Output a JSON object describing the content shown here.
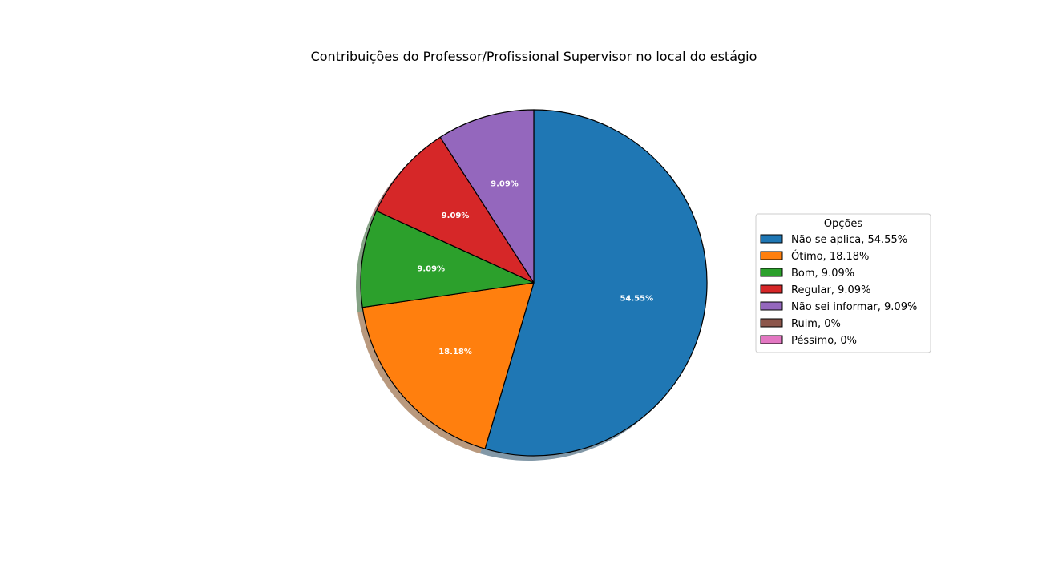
{
  "chart_data": {
    "type": "pie",
    "title": "Contribuições do Professor/Profissional Supervisor no local do estágio",
    "legend_title": "Opções",
    "legend_position": "right",
    "start_angle_deg": 90,
    "direction": "clockwise",
    "shadow": true,
    "slices": [
      {
        "label": "Não se aplica",
        "value": 54.55,
        "pct_label": "54.55%",
        "legend": "Não se aplica, 54.55%",
        "color": "#1f77b4"
      },
      {
        "label": "Ótimo",
        "value": 18.18,
        "pct_label": "18.18%",
        "legend": "Ótimo, 18.18%",
        "color": "#ff7f0e"
      },
      {
        "label": "Bom",
        "value": 9.09,
        "pct_label": "9.09%",
        "legend": "Bom, 9.09%",
        "color": "#2ca02c"
      },
      {
        "label": "Regular",
        "value": 9.09,
        "pct_label": "9.09%",
        "legend": "Regular, 9.09%",
        "color": "#d62728"
      },
      {
        "label": "Não sei informar",
        "value": 9.09,
        "pct_label": "9.09%",
        "legend": "Não sei informar, 9.09%",
        "color": "#9467bd"
      },
      {
        "label": "Ruim",
        "value": 0,
        "pct_label": "",
        "legend": "Ruim, 0%",
        "color": "#8c564b"
      },
      {
        "label": "Péssimo",
        "value": 0,
        "pct_label": "",
        "legend": "Péssimo, 0%",
        "color": "#e377c2"
      }
    ]
  }
}
